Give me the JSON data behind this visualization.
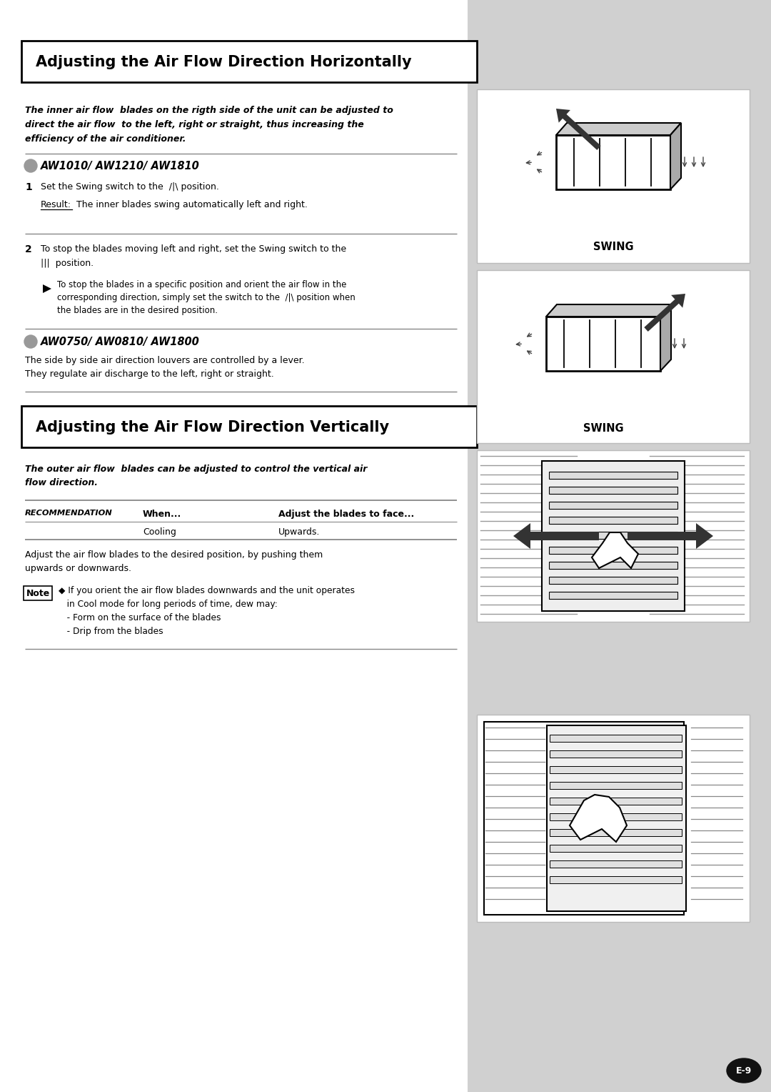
{
  "bg_color": "#ffffff",
  "sidebar_color": "#d0d0d0",
  "title1": "Adjusting the Air Flow Direction Horizontally",
  "title2": "Adjusting the Air Flow Direction Vertically",
  "intro1_line1": "The inner air flow  blades on the rigth side of the unit can be adjusted to",
  "intro1_line2": "direct the air flow  to the left, right or straight, thus increasing the",
  "intro1_line3": "efficiency of the air conditioner.",
  "section1_title": "AW1010/ AW1210/ AW1810",
  "step1_text": "Set the Swing switch to the  /|\\ position.",
  "result_label": "Result:",
  "result_text": "The inner blades swing automatically left and right.",
  "step2_line1": "To stop the blades moving left and right, set the Swing switch to the",
  "step2_line2": "|||  position.",
  "note_text_line1": "To stop the blades in a specific position and orient the air flow in the",
  "note_text_line2": "corresponding direction, simply set the switch to the  /|\\ position when",
  "note_text_line3": "the blades are in the desired position.",
  "section2_title": "AW0750/ AW0810/ AW1800",
  "section2_line1": "The side by side air direction louvers are controlled by a lever.",
  "section2_line2": "They regulate air discharge to the left, right or straight.",
  "swing_label": "SWING",
  "intro2_line1": "The outer air flow  blades can be adjusted to control the vertical air",
  "intro2_line2": "flow direction.",
  "rec_label": "RECOMMENDATION",
  "rec_when": "When...",
  "rec_adjust": "Adjust the blades to face...",
  "rec_cooling": "Cooling",
  "rec_upwards": "Upwards.",
  "adjust_line1": "Adjust the air flow blades to the desired position, by pushing them",
  "adjust_line2": "upwards or downwards.",
  "note_label": "Note",
  "note2_line1": "◆ If you orient the air flow blades downwards and the unit operates",
  "note2_line2": "   in Cool mode for long periods of time, dew may:",
  "note2_line3": "   - Form on the surface of the blades",
  "note2_line4": "   - Drip from the blades",
  "page_num": "E-9"
}
